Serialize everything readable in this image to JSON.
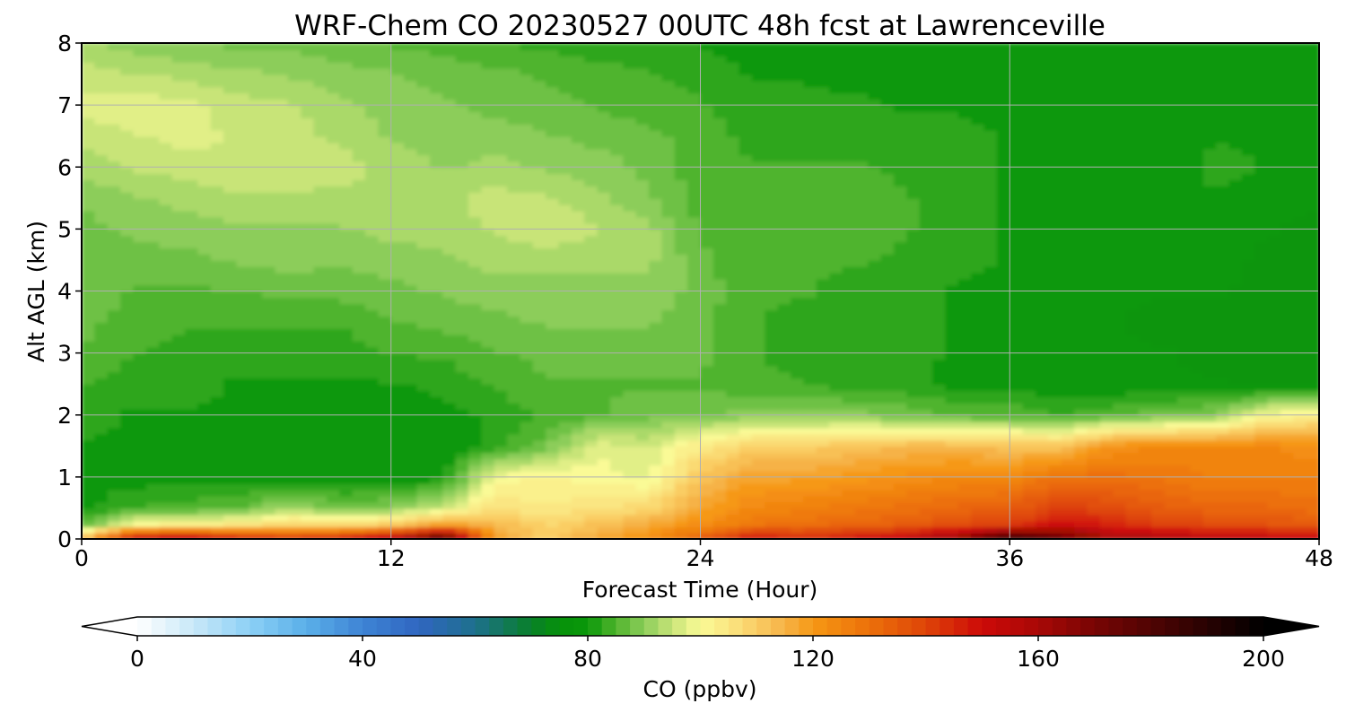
{
  "chart_data": {
    "type": "heatmap",
    "title": "WRF-Chem CO  20230527 00UTC 48h fcst at Lawrenceville",
    "xlabel": "Forecast Time (Hour)",
    "ylabel": "Alt AGL (km)",
    "xlim": [
      0,
      48
    ],
    "ylim": [
      0,
      8
    ],
    "x_ticks": [
      "0",
      "12",
      "24",
      "36",
      "48"
    ],
    "y_ticks": [
      "0",
      "1",
      "2",
      "3",
      "4",
      "5",
      "6",
      "7",
      "8"
    ],
    "grid": true,
    "colorbar": {
      "label": "CO  (ppbv)",
      "min": 0,
      "max": 200,
      "extend": "both",
      "ticks": [
        "0",
        "40",
        "80",
        "120",
        "160",
        "200"
      ]
    },
    "z_units": "ppbv",
    "x": [
      0,
      2,
      4,
      6,
      8,
      10,
      12,
      14,
      16,
      18,
      20,
      22,
      24,
      26,
      28,
      30,
      32,
      34,
      36,
      38,
      40,
      42,
      44,
      46,
      48
    ],
    "y": [
      0,
      0.25,
      0.5,
      1,
      1.5,
      2,
      2.5,
      3,
      3.5,
      4,
      4.5,
      5,
      5.5,
      6,
      6.5,
      7,
      7.5,
      8
    ],
    "z": [
      [
        115,
        155,
        160,
        150,
        145,
        150,
        160,
        185,
        120,
        110,
        118,
        122,
        135,
        150,
        145,
        150,
        155,
        165,
        190,
        175,
        160,
        160,
        155,
        155,
        155
      ],
      [
        85,
        100,
        102,
        104,
        108,
        106,
        110,
        118,
        114,
        108,
        112,
        116,
        122,
        128,
        130,
        132,
        134,
        138,
        140,
        150,
        145,
        140,
        138,
        136,
        135
      ],
      [
        80,
        84,
        85,
        86,
        92,
        88,
        90,
        96,
        106,
        104,
        106,
        108,
        118,
        124,
        126,
        128,
        130,
        132,
        134,
        142,
        138,
        134,
        132,
        132,
        130
      ],
      [
        80,
        80,
        80,
        80,
        80,
        79,
        79,
        80,
        100,
        102,
        100,
        98,
        112,
        118,
        118,
        120,
        122,
        124,
        124,
        130,
        130,
        128,
        126,
        126,
        126
      ],
      [
        81,
        81,
        80,
        80,
        80,
        79,
        79,
        79,
        82,
        88,
        98,
        96,
        104,
        110,
        110,
        112,
        114,
        114,
        112,
        112,
        122,
        124,
        124,
        124,
        122
      ],
      [
        82,
        81,
        81,
        81,
        80,
        79,
        79,
        80,
        82,
        84,
        86,
        88,
        88,
        90,
        90,
        90,
        88,
        86,
        86,
        84,
        86,
        88,
        90,
        100,
        104
      ],
      [
        84,
        82,
        82,
        81,
        81,
        81,
        81,
        82,
        84,
        86,
        86,
        86,
        86,
        84,
        84,
        82,
        82,
        80,
        80,
        79,
        79,
        79,
        79,
        78,
        78
      ],
      [
        86,
        84,
        83,
        82,
        82,
        82,
        84,
        84,
        86,
        87,
        88,
        88,
        87,
        84,
        83,
        82,
        82,
        81,
        80,
        79,
        79,
        79,
        78,
        78,
        77
      ],
      [
        87,
        85,
        84,
        84,
        84,
        84,
        86,
        87,
        88,
        89,
        89,
        89,
        87,
        84,
        83,
        82,
        82,
        81,
        80,
        79,
        79,
        78,
        78,
        78,
        77
      ],
      [
        88,
        86,
        86,
        86,
        87,
        87,
        88,
        89,
        90,
        90,
        90,
        90,
        88,
        84,
        84,
        83,
        82,
        81,
        80,
        80,
        79,
        79,
        79,
        78,
        77
      ],
      [
        88,
        88,
        88,
        89,
        90,
        89,
        90,
        91,
        92,
        92,
        92,
        92,
        87,
        84,
        84,
        84,
        83,
        82,
        81,
        80,
        79,
        79,
        80,
        78,
        78
      ],
      [
        88,
        89,
        90,
        91,
        91,
        91,
        92,
        92,
        94,
        96,
        94,
        92,
        86,
        84,
        86,
        86,
        84,
        82,
        81,
        80,
        80,
        80,
        80,
        79,
        78
      ],
      [
        89,
        91,
        92,
        93,
        93,
        93,
        93,
        93,
        95,
        94,
        92,
        89,
        85,
        84,
        86,
        86,
        84,
        82,
        81,
        80,
        80,
        80,
        81,
        80,
        79
      ],
      [
        92,
        94,
        95,
        96,
        96,
        95,
        93,
        91,
        92,
        91,
        90,
        88,
        85,
        84,
        84,
        84,
        83,
        82,
        81,
        80,
        80,
        80,
        82,
        81,
        80
      ],
      [
        95,
        96,
        97,
        96,
        95,
        93,
        91,
        90,
        90,
        89,
        88,
        87,
        85,
        83,
        83,
        83,
        82,
        82,
        81,
        80,
        80,
        80,
        81,
        81,
        80
      ],
      [
        97,
        98,
        97,
        95,
        94,
        92,
        90,
        89,
        88,
        87,
        86,
        85,
        84,
        82,
        82,
        82,
        81,
        81,
        80,
        80,
        80,
        80,
        80,
        80,
        80
      ],
      [
        95,
        94,
        93,
        92,
        91,
        90,
        89,
        88,
        87,
        86,
        85,
        84,
        83,
        81,
        81,
        80,
        80,
        80,
        80,
        80,
        80,
        80,
        80,
        80,
        80
      ],
      [
        92,
        90,
        89,
        88,
        88,
        87,
        86,
        85,
        84,
        83,
        82,
        82,
        81,
        80,
        80,
        80,
        80,
        80,
        80,
        80,
        80,
        80,
        80,
        80,
        80
      ]
    ]
  }
}
